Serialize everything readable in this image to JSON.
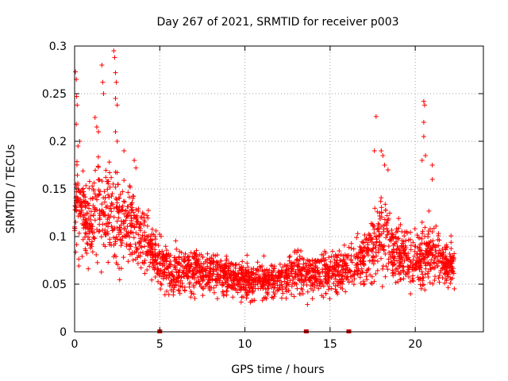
{
  "chart_data": {
    "type": "scatter",
    "title": "Day 267 of 2021, SRMTID for receiver p003",
    "xlabel": "GPS time / hours",
    "ylabel": "SRMTID / TECUs",
    "xlim": [
      0,
      24
    ],
    "ylim": [
      0,
      0.3
    ],
    "xticks": [
      0,
      5,
      10,
      15,
      20
    ],
    "xtick_labels": [
      "0",
      "5",
      "10",
      "15",
      "20"
    ],
    "yticks": [
      0,
      0.05,
      0.1,
      0.15,
      0.2,
      0.25,
      0.3
    ],
    "ytick_labels": [
      "0",
      "0.05",
      "0.1",
      "0.15",
      "0.2",
      "0.25",
      "0.3"
    ],
    "grid": true,
    "marker": "+",
    "color": "#ff0000",
    "gap_markers_x": [
      5.0,
      13.6,
      16.1
    ],
    "series": [
      {
        "name": "SRMTID",
        "profile_hours": [
          0.0,
          0.1,
          0.3,
          0.6,
          1.0,
          1.5,
          2.0,
          2.5,
          3.0,
          3.5,
          4.0,
          4.5,
          5.0,
          5.5,
          6.0,
          7.0,
          8.0,
          9.0,
          10.0,
          11.0,
          12.0,
          13.0,
          14.0,
          15.0,
          15.5,
          16.0,
          16.5,
          17.0,
          17.5,
          18.0,
          18.5,
          19.0,
          19.5,
          20.0,
          20.5,
          21.0,
          21.5,
          22.0,
          22.3
        ],
        "profile_median": [
          0.11,
          0.14,
          0.13,
          0.12,
          0.12,
          0.13,
          0.13,
          0.12,
          0.12,
          0.11,
          0.1,
          0.085,
          0.075,
          0.065,
          0.065,
          0.063,
          0.062,
          0.058,
          0.055,
          0.052,
          0.055,
          0.062,
          0.06,
          0.062,
          0.065,
          0.065,
          0.07,
          0.08,
          0.09,
          0.1,
          0.095,
          0.085,
          0.08,
          0.075,
          0.08,
          0.085,
          0.075,
          0.072,
          0.072
        ],
        "spikes": [
          {
            "x": 0.05,
            "y": 0.273
          },
          {
            "x": 0.1,
            "y": 0.265
          },
          {
            "x": 0.12,
            "y": 0.247
          },
          {
            "x": 0.15,
            "y": 0.238
          },
          {
            "x": 0.1,
            "y": 0.218
          },
          {
            "x": 0.2,
            "y": 0.195
          },
          {
            "x": 0.3,
            "y": 0.2
          },
          {
            "x": 1.2,
            "y": 0.225
          },
          {
            "x": 1.3,
            "y": 0.215
          },
          {
            "x": 1.4,
            "y": 0.21
          },
          {
            "x": 1.6,
            "y": 0.28
          },
          {
            "x": 1.65,
            "y": 0.262
          },
          {
            "x": 1.7,
            "y": 0.25
          },
          {
            "x": 2.3,
            "y": 0.295
          },
          {
            "x": 2.35,
            "y": 0.288
          },
          {
            "x": 2.4,
            "y": 0.272
          },
          {
            "x": 2.45,
            "y": 0.262
          },
          {
            "x": 2.4,
            "y": 0.245
          },
          {
            "x": 2.5,
            "y": 0.238
          },
          {
            "x": 2.4,
            "y": 0.21
          },
          {
            "x": 2.5,
            "y": 0.2
          },
          {
            "x": 2.9,
            "y": 0.19
          },
          {
            "x": 3.5,
            "y": 0.18
          },
          {
            "x": 3.6,
            "y": 0.172
          },
          {
            "x": 17.7,
            "y": 0.226
          },
          {
            "x": 17.6,
            "y": 0.19
          },
          {
            "x": 18.0,
            "y": 0.19
          },
          {
            "x": 18.1,
            "y": 0.185
          },
          {
            "x": 18.2,
            "y": 0.175
          },
          {
            "x": 18.4,
            "y": 0.17
          },
          {
            "x": 20.5,
            "y": 0.242
          },
          {
            "x": 20.55,
            "y": 0.238
          },
          {
            "x": 20.5,
            "y": 0.22
          },
          {
            "x": 20.5,
            "y": 0.205
          },
          {
            "x": 20.6,
            "y": 0.185
          },
          {
            "x": 20.4,
            "y": 0.18
          },
          {
            "x": 21.0,
            "y": 0.175
          },
          {
            "x": 21.0,
            "y": 0.16
          }
        ]
      }
    ]
  }
}
